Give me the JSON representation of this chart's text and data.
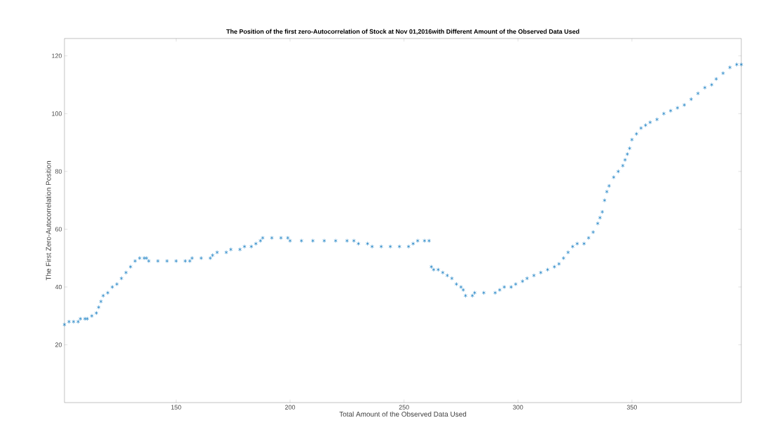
{
  "chart_data": {
    "type": "scatter",
    "title": "The Position of the first zero-Autocorrelation of Stock at Nov 01,2016with Different Amount of the Observed Data Used",
    "xlabel": "Total Amount of the Observed Data Used",
    "ylabel": "The First Zero-Autocorrelation Position",
    "xlim": [
      101,
      398
    ],
    "ylim": [
      0,
      126
    ],
    "xticks": [
      150,
      200,
      250,
      300,
      350
    ],
    "yticks": [
      20,
      40,
      60,
      80,
      100,
      120
    ],
    "marker": "cross",
    "grid": false,
    "series": [
      {
        "color": "#0072bd",
        "x": [
          101,
          103,
          105,
          107,
          108,
          110,
          111,
          113,
          115,
          116,
          117,
          118,
          120,
          122,
          124,
          126,
          128,
          130,
          132,
          134,
          136,
          137,
          138,
          142,
          146,
          150,
          154,
          156,
          157,
          161,
          165,
          166,
          168,
          172,
          174,
          178,
          180,
          183,
          185,
          187,
          188,
          192,
          196,
          199,
          200,
          205,
          210,
          215,
          220,
          225,
          228,
          230,
          234,
          236,
          240,
          244,
          248,
          252,
          254,
          256,
          259,
          261,
          262,
          263,
          265,
          267,
          269,
          271,
          273,
          275,
          276,
          277,
          280,
          281,
          285,
          290,
          292,
          294,
          297,
          299,
          302,
          304,
          307,
          310,
          313,
          316,
          318,
          320,
          322,
          324,
          326,
          329,
          331,
          333,
          335,
          336,
          337,
          338,
          339,
          340,
          342,
          344,
          346,
          347,
          348,
          349,
          350,
          352,
          354,
          356,
          358,
          361,
          364,
          367,
          370,
          373,
          376,
          379,
          382,
          385,
          387,
          390,
          393,
          396,
          398
        ],
        "values": [
          27,
          28,
          28,
          28,
          29,
          29,
          29,
          30,
          31,
          33,
          35,
          37,
          38,
          40,
          41,
          43,
          45,
          47,
          49,
          50,
          50,
          50,
          49,
          49,
          49,
          49,
          49,
          49,
          50,
          50,
          50,
          51,
          52,
          52,
          53,
          53,
          54,
          54,
          55,
          56,
          57,
          57,
          57,
          57,
          56,
          56,
          56,
          56,
          56,
          56,
          56,
          55,
          55,
          54,
          54,
          54,
          54,
          54,
          55,
          56,
          56,
          56,
          47,
          46,
          46,
          45,
          44,
          43,
          41,
          40,
          39,
          37,
          37,
          38,
          38,
          38,
          39,
          40,
          40,
          41,
          42,
          43,
          44,
          45,
          46,
          47,
          48,
          50,
          52,
          54,
          55,
          55,
          57,
          59,
          62,
          64,
          66,
          70,
          73,
          75,
          78,
          80,
          82,
          84,
          86,
          88,
          91,
          93,
          95,
          96,
          97,
          98,
          100,
          101,
          102,
          103,
          105,
          107,
          109,
          110,
          112,
          114,
          116,
          117,
          117
        ]
      }
    ]
  }
}
